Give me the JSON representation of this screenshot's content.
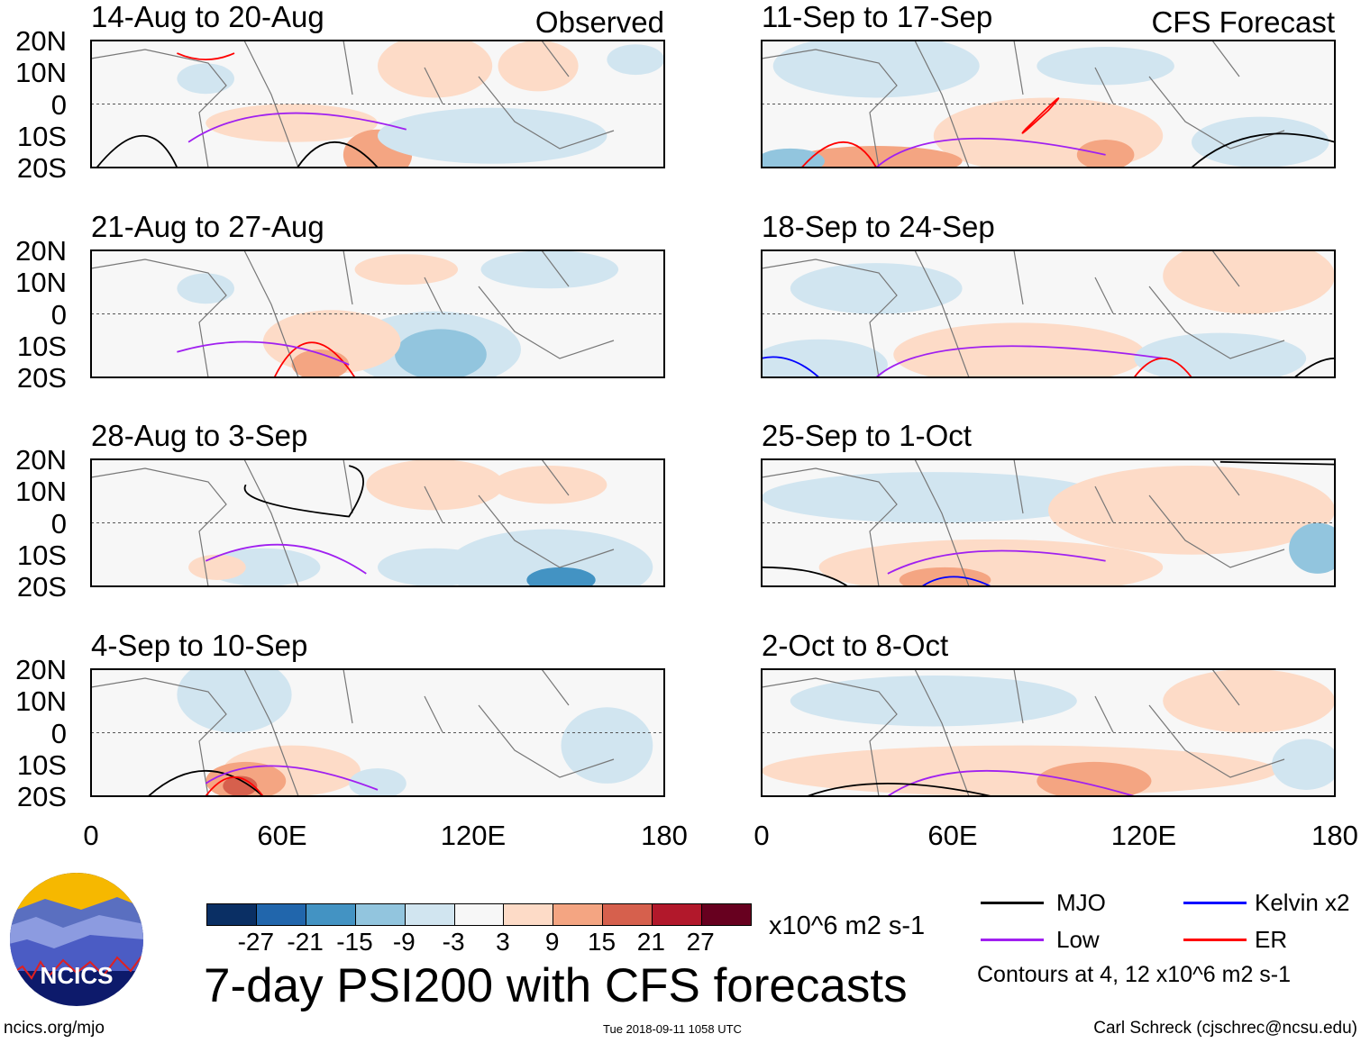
{
  "chart_data": {
    "type": "heatmap",
    "title": "7-day PSI200 with CFS forecasts",
    "units": "x10^6 m2 s-1",
    "x_ticks": [
      "0",
      "60E",
      "120E",
      "180"
    ],
    "y_ticks": [
      "20N",
      "10N",
      "0",
      "10S",
      "20S"
    ],
    "xlim": [
      0,
      180
    ],
    "ylim": [
      -20,
      20
    ],
    "panels": [
      {
        "title": "14-Aug to 20-Aug",
        "label": "Observed",
        "column": "left"
      },
      {
        "title": "21-Aug to 27-Aug",
        "label": "",
        "column": "left"
      },
      {
        "title": "28-Aug to 3-Sep",
        "label": "",
        "column": "left"
      },
      {
        "title": "4-Sep to 10-Sep",
        "label": "",
        "column": "left"
      },
      {
        "title": "11-Sep to 17-Sep",
        "label": "CFS Forecast",
        "column": "right"
      },
      {
        "title": "18-Sep to 24-Sep",
        "label": "",
        "column": "right"
      },
      {
        "title": "25-Sep to 1-Oct",
        "label": "",
        "column": "right"
      },
      {
        "title": "2-Oct to 8-Oct",
        "label": "",
        "column": "right"
      }
    ],
    "colorbar": {
      "ticks": [
        "-27",
        "-21",
        "-15",
        "-9",
        "-3",
        "3",
        "9",
        "15",
        "21",
        "27"
      ],
      "colors": [
        "#0a2f64",
        "#2166ac",
        "#4393c3",
        "#92c5de",
        "#d1e5f0",
        "#f7f7f7",
        "#fddbc7",
        "#f4a582",
        "#d6604d",
        "#b2182b",
        "#67001f"
      ]
    },
    "legend": [
      {
        "name": "MJO",
        "color": "#000000"
      },
      {
        "name": "Kelvin x2",
        "color": "#0000ff"
      },
      {
        "name": "Low",
        "color": "#a020f0"
      },
      {
        "name": "ER",
        "color": "#ff0000"
      }
    ],
    "contour_note": "Contours at 4, 12 x10^6 m2 s-1"
  },
  "footer": {
    "url": "ncics.org/mjo",
    "timestamp": "Tue 2018-09-11 1058 UTC",
    "author": "Carl Schreck (cjschrec@ncsu.edu)"
  },
  "logo": {
    "text": "NCICS"
  }
}
